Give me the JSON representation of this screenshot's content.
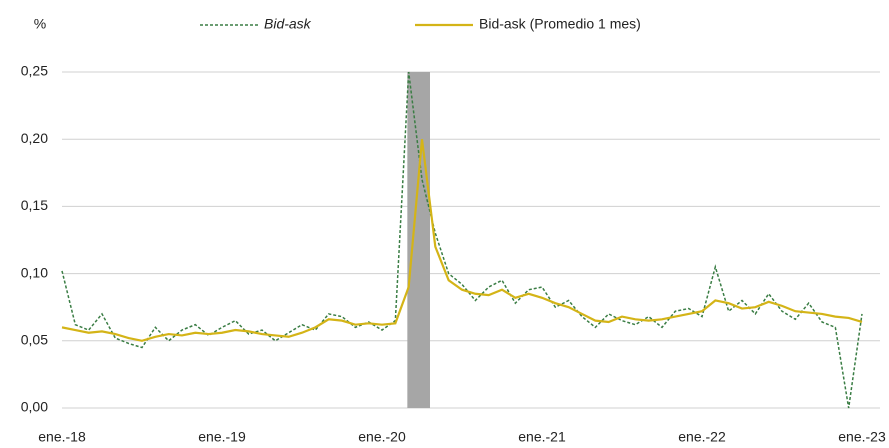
{
  "chart_data": {
    "type": "line",
    "ylabel": "%",
    "categories": [
      "ene.-18",
      null,
      null,
      null,
      null,
      null,
      null,
      null,
      null,
      null,
      null,
      null,
      "ene.-19",
      null,
      null,
      null,
      null,
      null,
      null,
      null,
      null,
      null,
      null,
      null,
      "ene.-20",
      null,
      null,
      null,
      null,
      null,
      null,
      null,
      null,
      null,
      null,
      null,
      "ene.-21",
      null,
      null,
      null,
      null,
      null,
      null,
      null,
      null,
      null,
      null,
      null,
      "ene.-22",
      null,
      null,
      null,
      null,
      null,
      null,
      null,
      null,
      null,
      null,
      null,
      "ene.-23"
    ],
    "series": [
      {
        "name": "Bid-ask",
        "color": "#3a7d44",
        "dashed": true,
        "values": [
          0.102,
          0.062,
          0.058,
          0.07,
          0.052,
          0.048,
          0.045,
          0.06,
          0.05,
          0.058,
          0.062,
          0.054,
          0.06,
          0.065,
          0.055,
          0.058,
          0.05,
          0.056,
          0.062,
          0.058,
          0.07,
          0.068,
          0.06,
          0.064,
          0.058,
          0.065,
          0.25,
          0.17,
          0.13,
          0.1,
          0.092,
          0.08,
          0.09,
          0.095,
          0.078,
          0.088,
          0.09,
          0.075,
          0.08,
          0.068,
          0.06,
          0.07,
          0.065,
          0.062,
          0.068,
          0.06,
          0.072,
          0.074,
          0.068,
          0.105,
          0.072,
          0.08,
          0.07,
          0.085,
          0.072,
          0.066,
          0.078,
          0.064,
          0.06,
          0.0,
          0.07
        ]
      },
      {
        "name": "Bid-ask (Promedio 1 mes)",
        "color": "#d4b417",
        "dashed": false,
        "values": [
          0.06,
          0.058,
          0.056,
          0.057,
          0.055,
          0.052,
          0.05,
          0.053,
          0.055,
          0.054,
          0.056,
          0.055,
          0.056,
          0.058,
          0.057,
          0.055,
          0.054,
          0.053,
          0.056,
          0.06,
          0.066,
          0.065,
          0.062,
          0.063,
          0.062,
          0.063,
          0.09,
          0.2,
          0.12,
          0.095,
          0.088,
          0.085,
          0.084,
          0.088,
          0.082,
          0.085,
          0.082,
          0.078,
          0.075,
          0.07,
          0.065,
          0.064,
          0.068,
          0.066,
          0.065,
          0.066,
          0.068,
          0.07,
          0.072,
          0.08,
          0.078,
          0.074,
          0.075,
          0.079,
          0.076,
          0.072,
          0.071,
          0.07,
          0.068,
          0.067,
          0.064
        ]
      }
    ],
    "shaded_period": [
      25.9,
      27.6
    ],
    "ylim": [
      0,
      0.25
    ],
    "yticks": [
      {
        "value": 0,
        "label": "0,00"
      },
      {
        "value": 0.05,
        "label": "0,05"
      },
      {
        "value": 0.1,
        "label": "0,10"
      },
      {
        "value": 0.15,
        "label": "0,15"
      },
      {
        "value": 0.2,
        "label": "0,20"
      },
      {
        "value": 0.25,
        "label": "0,25"
      }
    ],
    "grid": true
  }
}
